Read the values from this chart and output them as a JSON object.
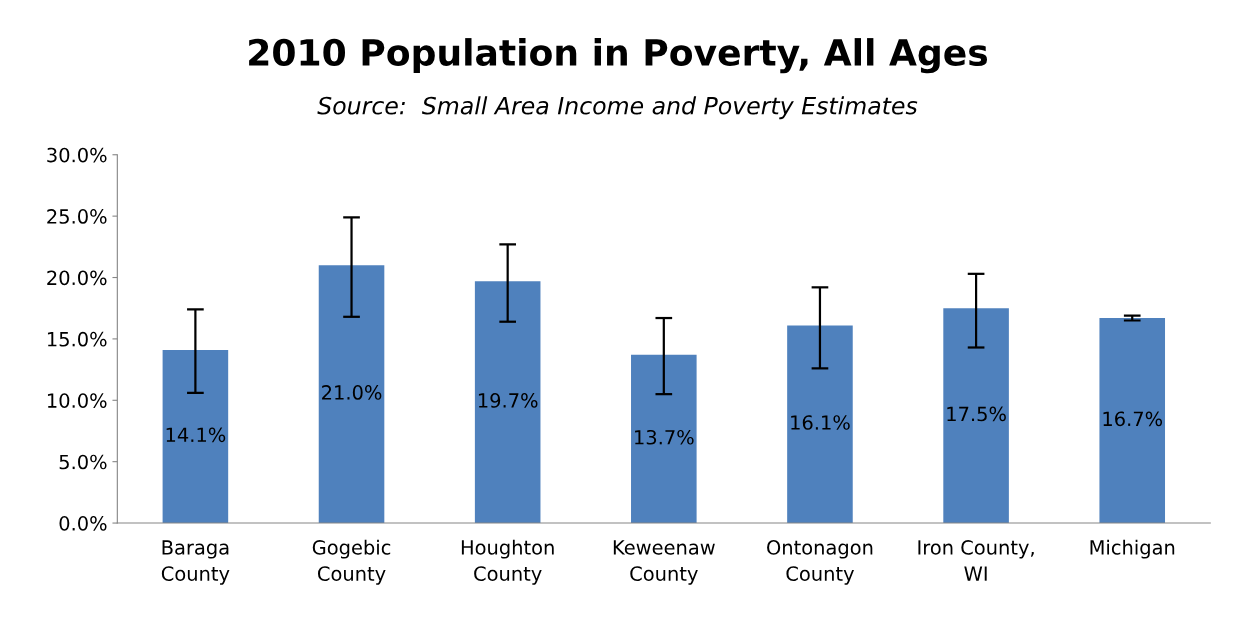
{
  "chart_data": {
    "type": "bar",
    "title": "2010 Population in Poverty, All Ages",
    "subtitle": "Source:  Small Area Income and Poverty Estimates",
    "categories": [
      "Baraga\nCounty",
      "Gogebic\nCounty",
      "Houghton\nCounty",
      "Keweenaw\nCounty",
      "Ontonagon\nCounty",
      "Iron County,\nWI",
      "Michigan"
    ],
    "values": [
      14.1,
      21.0,
      19.7,
      13.7,
      16.1,
      17.5,
      16.7
    ],
    "value_labels": [
      "14.1%",
      "21.0%",
      "19.7%",
      "13.7%",
      "16.1%",
      "17.5%",
      "16.7%"
    ],
    "errors": [
      [
        10.6,
        17.4
      ],
      [
        16.8,
        24.9
      ],
      [
        16.4,
        22.7
      ],
      [
        10.5,
        16.7
      ],
      [
        12.6,
        19.2
      ],
      [
        14.3,
        20.3
      ],
      [
        16.5,
        16.9
      ]
    ],
    "color": "#4f81bd",
    "ylim": [
      0,
      30
    ],
    "yticks": [
      {
        "value": 0,
        "label": "0.0%"
      },
      {
        "value": 5,
        "label": "5.0%"
      },
      {
        "value": 10,
        "label": "10.0%"
      },
      {
        "value": 15,
        "label": "15.0%"
      },
      {
        "value": 20,
        "label": "20.0%"
      },
      {
        "value": 25,
        "label": "25.0%"
      },
      {
        "value": 30,
        "label": "30.0%"
      }
    ],
    "grid": false
  }
}
